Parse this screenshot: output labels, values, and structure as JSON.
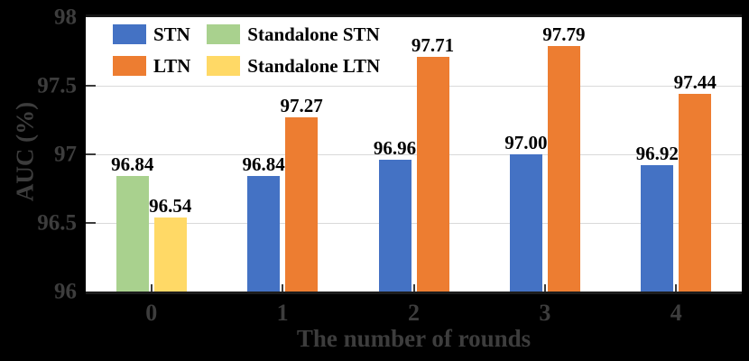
{
  "chart_data": {
    "type": "bar",
    "title": "",
    "xlabel": "The number of rounds",
    "ylabel": "AUC (%)",
    "ylim": [
      96,
      98
    ],
    "yticks": [
      96,
      96.5,
      97,
      97.5,
      98
    ],
    "ytick_labels": [
      "96",
      "96.5",
      "97",
      "97.5",
      "98"
    ],
    "categories": [
      "0",
      "1",
      "2",
      "3",
      "4"
    ],
    "grid": true,
    "legend_position": "top-left-inside",
    "value_labels_decimals": 2,
    "series": [
      {
        "name": "STN",
        "color": "#4472C4",
        "values": [
          null,
          96.84,
          96.96,
          97.0,
          96.92
        ]
      },
      {
        "name": "LTN",
        "color": "#ED7D31",
        "values": [
          null,
          97.27,
          97.71,
          97.79,
          97.44
        ]
      },
      {
        "name": "Standalone STN",
        "color": "#A9D18E",
        "values": [
          96.84,
          null,
          null,
          null,
          null
        ]
      },
      {
        "name": "Standalone LTN",
        "color": "#FFD966",
        "values": [
          96.54,
          null,
          null,
          null,
          null
        ]
      }
    ]
  },
  "colors": {
    "background": "#000000",
    "plot_background": "#FFFFFF",
    "gridline": "#D9D9D9",
    "frame": "#161616",
    "axis_text": "#3D3D3D",
    "value_label_text": "#000000",
    "series_blue": "#4472C4",
    "series_orange": "#ED7D31",
    "series_green": "#A9D18E",
    "series_yellow": "#FFD966"
  }
}
